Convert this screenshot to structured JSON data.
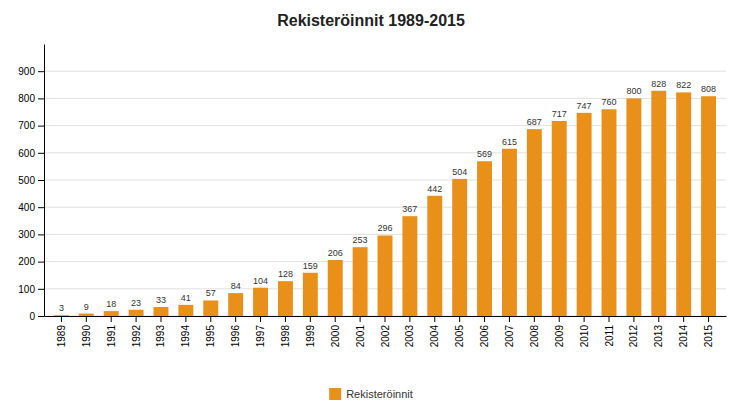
{
  "chart_data": {
    "type": "bar",
    "title": "Rekisteröinnit 1989-2015",
    "categories": [
      "1989",
      "1990",
      "1991",
      "1992",
      "1993",
      "1994",
      "1995",
      "1996",
      "1997",
      "1998",
      "1999",
      "2000",
      "2001",
      "2002",
      "2003",
      "2004",
      "2005",
      "2006",
      "2007",
      "2008",
      "2009",
      "2010",
      "2011",
      "2012",
      "2013",
      "2014",
      "2015"
    ],
    "series": [
      {
        "name": "Rekisteröinnit",
        "color": "#E8901A",
        "values": [
          3,
          9,
          18,
          23,
          33,
          41,
          57,
          84,
          104,
          128,
          159,
          206,
          253,
          296,
          367,
          442,
          504,
          569,
          615,
          687,
          717,
          747,
          760,
          800,
          828,
          822,
          808
        ]
      }
    ],
    "ylim": [
      0,
      1000
    ],
    "yticks": [
      0,
      100,
      200,
      300,
      400,
      500,
      600,
      700,
      800,
      900
    ],
    "grid": true,
    "data_labels": true,
    "legend": "bottom"
  }
}
